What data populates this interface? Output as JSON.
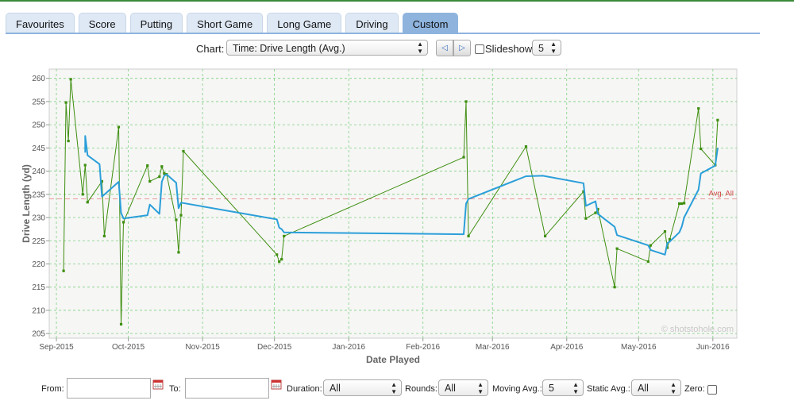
{
  "tabs": [
    {
      "label": "Favourites",
      "active": false
    },
    {
      "label": "Score",
      "active": false
    },
    {
      "label": "Putting",
      "active": false
    },
    {
      "label": "Short Game",
      "active": false
    },
    {
      "label": "Long Game",
      "active": false
    },
    {
      "label": "Driving",
      "active": false
    },
    {
      "label": "Custom",
      "active": true
    }
  ],
  "controls": {
    "chart_label": "Chart:",
    "chart_value": "Time: Drive Length (Avg.)",
    "slideshow_label": "Slideshow",
    "slideshow_checked": false,
    "slideshow_interval": "5"
  },
  "filters": {
    "from_label": "From:",
    "from_value": "",
    "to_label": "To:",
    "to_value": "",
    "duration_label": "Duration:",
    "duration_value": "All",
    "rounds_label": "Rounds:",
    "rounds_value": "All",
    "moving_avg_label": "Moving Avg.:",
    "moving_avg_value": "5",
    "static_avg_label": "Static Avg.:",
    "static_avg_value": "All",
    "zero_label": "Zero:",
    "zero_checked": false
  },
  "chart_data": {
    "type": "line",
    "xlabel": "Date Played",
    "ylabel": "Drive Length (yd)",
    "ylim": [
      204,
      262
    ],
    "xlim": [
      "2015-08-29",
      "2016-06-11"
    ],
    "yticks": [
      205,
      210,
      215,
      220,
      225,
      230,
      235,
      240,
      245,
      250,
      255,
      260
    ],
    "xticks": [
      {
        "date": "2015-09-01",
        "label": "Sep-2015"
      },
      {
        "date": "2015-10-01",
        "label": "Oct-2015"
      },
      {
        "date": "2015-11-01",
        "label": "Nov-2015"
      },
      {
        "date": "2015-12-01",
        "label": "Dec-2015"
      },
      {
        "date": "2016-01-01",
        "label": "Jan-2016"
      },
      {
        "date": "2016-02-01",
        "label": "Feb-2016"
      },
      {
        "date": "2016-03-01",
        "label": "Mar-2016"
      },
      {
        "date": "2016-04-01",
        "label": "Apr-2016"
      },
      {
        "date": "2016-05-01",
        "label": "May-2016"
      },
      {
        "date": "2016-06-01",
        "label": "Jun-2016"
      }
    ],
    "grid": true,
    "reference_line": {
      "label": "Avg. All",
      "value": 234
    },
    "watermark": "© shotstohole.com",
    "colors": {
      "rounds": "#3f8f10",
      "moving_avg": "#2b9fd9",
      "avg_line": "#e07a7a",
      "grid": "#7ed07e",
      "plot_bg": "#f6f6f5"
    },
    "series": [
      {
        "role": "rounds",
        "points": [
          [
            "2015-09-04",
            218.5
          ],
          [
            "2015-09-05",
            254.8
          ],
          [
            "2015-09-06",
            246.5
          ],
          [
            "2015-09-07",
            259.8
          ],
          [
            "2015-09-12",
            235.0
          ],
          [
            "2015-09-13",
            241.3
          ],
          [
            "2015-09-14",
            233.3
          ],
          [
            "2015-09-20",
            237.8
          ],
          [
            "2015-09-21",
            226.0
          ],
          [
            "2015-09-27",
            249.5
          ],
          [
            "2015-09-28",
            207.0
          ],
          [
            "2015-09-29",
            229.0
          ],
          [
            "2015-10-09",
            241.2
          ],
          [
            "2015-10-10",
            237.8
          ],
          [
            "2015-10-14",
            238.8
          ],
          [
            "2015-10-15",
            241.0
          ],
          [
            "2015-10-16",
            239.5
          ],
          [
            "2015-10-17",
            239.3
          ],
          [
            "2015-10-21",
            229.5
          ],
          [
            "2015-10-22",
            222.5
          ],
          [
            "2015-10-23",
            230.5
          ],
          [
            "2015-10-24",
            244.3
          ],
          [
            "2015-12-02",
            222.0
          ],
          [
            "2015-12-03",
            220.5
          ],
          [
            "2015-12-04",
            221.0
          ],
          [
            "2015-12-05",
            226.0
          ],
          [
            "2016-02-18",
            243.0
          ],
          [
            "2016-02-19",
            255.0
          ],
          [
            "2016-02-20",
            226.0
          ],
          [
            "2016-03-15",
            245.3
          ],
          [
            "2016-03-23",
            226.0
          ],
          [
            "2016-04-08",
            235.6
          ],
          [
            "2016-04-09",
            229.8
          ],
          [
            "2016-04-13",
            231.0
          ],
          [
            "2016-04-14",
            231.8
          ],
          [
            "2016-04-21",
            215.0
          ],
          [
            "2016-04-22",
            223.3
          ],
          [
            "2016-05-05",
            220.5
          ],
          [
            "2016-05-06",
            224.0
          ],
          [
            "2016-05-12",
            227.0
          ],
          [
            "2016-05-13",
            223.5
          ],
          [
            "2016-05-14",
            225.3
          ],
          [
            "2016-05-18",
            233.0
          ],
          [
            "2016-05-19",
            233.0
          ],
          [
            "2016-05-20",
            233.1
          ],
          [
            "2016-05-26",
            253.5
          ],
          [
            "2016-05-27",
            244.8
          ],
          [
            "2016-06-02",
            241.3
          ],
          [
            "2016-06-03",
            251.0
          ]
        ]
      },
      {
        "role": "moving_avg",
        "points": [
          [
            "2015-09-13",
            244.0
          ],
          [
            "2015-09-13",
            247.6
          ],
          [
            "2015-09-14",
            243.4
          ],
          [
            "2015-09-19",
            241.5
          ],
          [
            "2015-09-20",
            234.5
          ],
          [
            "2015-09-27",
            237.7
          ],
          [
            "2015-09-28",
            231.0
          ],
          [
            "2015-09-29",
            229.8
          ],
          [
            "2015-10-09",
            230.5
          ],
          [
            "2015-10-10",
            232.8
          ],
          [
            "2015-10-14",
            230.8
          ],
          [
            "2015-10-15",
            237.7
          ],
          [
            "2015-10-16",
            239.0
          ],
          [
            "2015-10-17",
            239.3
          ],
          [
            "2015-10-21",
            237.5
          ],
          [
            "2015-10-22",
            232.0
          ],
          [
            "2015-10-23",
            233.2
          ],
          [
            "2015-12-02",
            229.6
          ],
          [
            "2015-12-03",
            227.8
          ],
          [
            "2015-12-04",
            227.5
          ],
          [
            "2015-12-05",
            226.8
          ],
          [
            "2016-02-18",
            226.4
          ],
          [
            "2016-02-19",
            233.0
          ],
          [
            "2016-02-20",
            234.0
          ],
          [
            "2016-03-15",
            238.9
          ],
          [
            "2016-03-22",
            239.0
          ],
          [
            "2016-04-08",
            237.4
          ],
          [
            "2016-04-09",
            232.5
          ],
          [
            "2016-04-13",
            233.5
          ],
          [
            "2016-04-14",
            230.8
          ],
          [
            "2016-04-21",
            228.0
          ],
          [
            "2016-04-22",
            226.2
          ],
          [
            "2016-05-05",
            224.0
          ],
          [
            "2016-05-06",
            223.0
          ],
          [
            "2016-05-12",
            222.0
          ],
          [
            "2016-05-13",
            224.5
          ],
          [
            "2016-05-14",
            224.8
          ],
          [
            "2016-05-18",
            226.8
          ],
          [
            "2016-05-19",
            228.0
          ],
          [
            "2016-05-20",
            230.0
          ],
          [
            "2016-05-26",
            236.0
          ],
          [
            "2016-05-27",
            239.5
          ],
          [
            "2016-06-02",
            241.2
          ],
          [
            "2016-06-03",
            245.0
          ]
        ]
      }
    ]
  }
}
